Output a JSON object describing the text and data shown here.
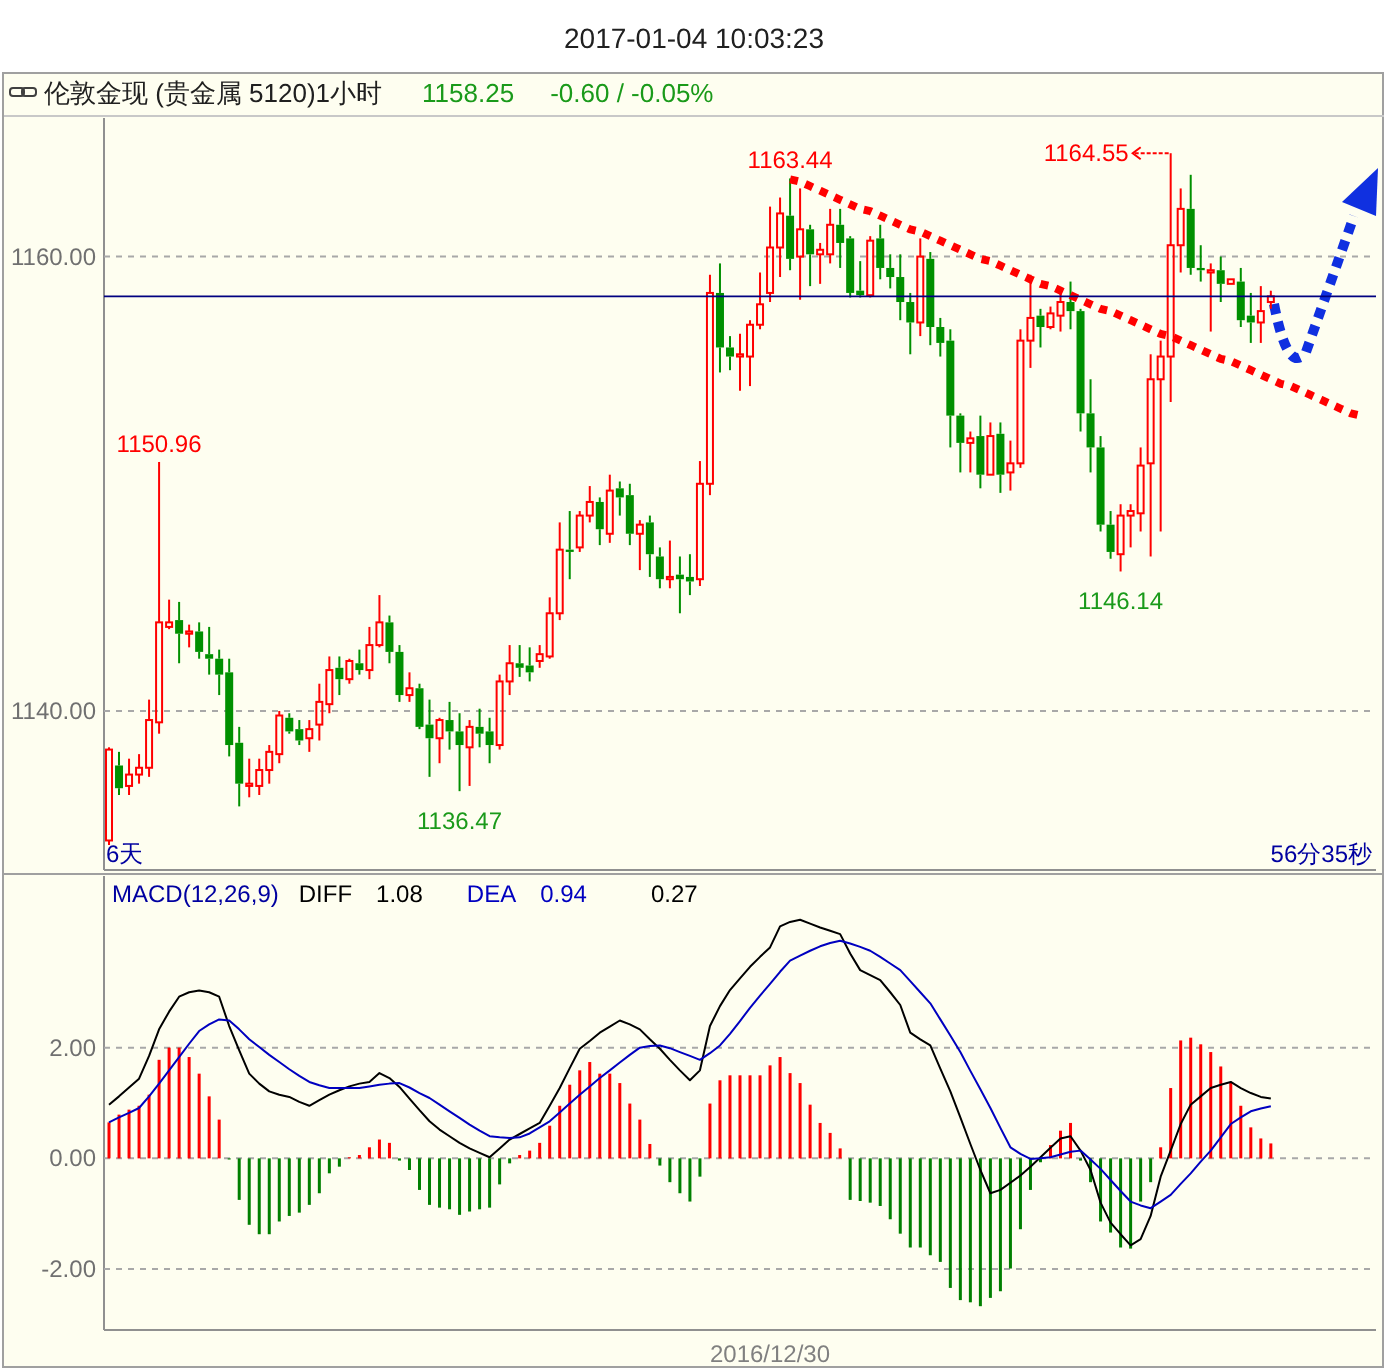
{
  "chart_data": [
    {
      "type": "candlestick",
      "title": "2017-01-04 10:03:23",
      "subtitle": "伦敦金现 (贵金属 5120)1小时",
      "categories": [
        null,
        null,
        null,
        null,
        null,
        null,
        null,
        null,
        null,
        null,
        null,
        null,
        null,
        null,
        null,
        null,
        null,
        null,
        null,
        null,
        null,
        null,
        null,
        null,
        null,
        null,
        null,
        null,
        null,
        null,
        null,
        null,
        null,
        null,
        null,
        null,
        null,
        null,
        null,
        null,
        null,
        null,
        null,
        null,
        null,
        null,
        null,
        null,
        null,
        null,
        null,
        null,
        null,
        null,
        null,
        null,
        null,
        null,
        null,
        null,
        null,
        null,
        null,
        null,
        null,
        null,
        null,
        null,
        null,
        null,
        null,
        null,
        null,
        null,
        null,
        null,
        null,
        null,
        null,
        null,
        null,
        null,
        null,
        null,
        null,
        null,
        null,
        null,
        null,
        null,
        null,
        null,
        null,
        null,
        null,
        null,
        null,
        null,
        null,
        null,
        null,
        null,
        null,
        null,
        null,
        null,
        null,
        null,
        null,
        null,
        null,
        null,
        null,
        null,
        null,
        null,
        null,
        null,
        null,
        null,
        null,
        null,
        null,
        null,
        null,
        null,
        null
      ],
      "ohlc": [
        [
          1134.3,
          1138.4,
          1134.1,
          1138.3
        ],
        [
          1137.6,
          1138.2,
          1136.3,
          1136.6
        ],
        [
          1136.7,
          1137.9,
          1136.3,
          1137.2
        ],
        [
          1137.2,
          1138.1,
          1136.8,
          1137.5
        ],
        [
          1137.5,
          1140.5,
          1137.1,
          1139.6
        ],
        [
          1139.5,
          1150.96,
          1139.0,
          1143.9
        ],
        [
          1143.7,
          1144.9,
          1143.6,
          1143.9
        ],
        [
          1144.0,
          1144.8,
          1142.1,
          1143.4
        ],
        [
          1143.4,
          1143.8,
          1142.8,
          1143.5
        ],
        [
          1143.5,
          1143.9,
          1142.3,
          1142.6
        ],
        [
          1142.5,
          1143.7,
          1141.6,
          1142.3
        ],
        [
          1142.3,
          1142.7,
          1140.7,
          1141.6
        ],
        [
          1141.7,
          1142.3,
          1138.0,
          1138.5
        ],
        [
          1138.6,
          1139.3,
          1135.8,
          1136.8
        ],
        [
          1136.7,
          1137.9,
          1136.2,
          1136.8
        ],
        [
          1136.7,
          1137.9,
          1136.3,
          1137.4
        ],
        [
          1137.4,
          1138.5,
          1136.8,
          1138.2
        ],
        [
          1138.1,
          1140.0,
          1137.7,
          1139.8
        ],
        [
          1139.7,
          1139.9,
          1139.0,
          1139.1
        ],
        [
          1139.2,
          1139.6,
          1138.5,
          1138.7
        ],
        [
          1138.8,
          1139.6,
          1138.2,
          1139.2
        ],
        [
          1139.4,
          1141.2,
          1138.7,
          1140.4
        ],
        [
          1140.3,
          1142.4,
          1139.9,
          1141.8
        ],
        [
          1141.9,
          1142.4,
          1140.7,
          1141.4
        ],
        [
          1141.4,
          1142.3,
          1141.2,
          1142.2
        ],
        [
          1142.1,
          1142.7,
          1141.6,
          1141.8
        ],
        [
          1141.8,
          1143.7,
          1141.4,
          1142.9
        ],
        [
          1142.9,
          1145.1,
          1142.8,
          1143.9
        ],
        [
          1143.9,
          1144.2,
          1142.1,
          1142.6
        ],
        [
          1142.6,
          1142.9,
          1140.4,
          1140.7
        ],
        [
          1140.7,
          1141.7,
          1140.4,
          1141.0
        ],
        [
          1141.0,
          1141.2,
          1139.2,
          1139.3
        ],
        [
          1139.4,
          1140.5,
          1137.1,
          1138.8
        ],
        [
          1138.8,
          1139.7,
          1137.7,
          1139.6
        ],
        [
          1139.6,
          1140.4,
          1138.3,
          1139.1
        ],
        [
          1139.1,
          1139.9,
          1136.47,
          1138.5
        ],
        [
          1138.4,
          1139.6,
          1136.7,
          1139.3
        ],
        [
          1139.3,
          1140.1,
          1138.4,
          1139.0
        ],
        [
          1139.1,
          1139.7,
          1137.7,
          1138.5
        ],
        [
          1138.5,
          1141.6,
          1138.3,
          1141.3
        ],
        [
          1141.3,
          1142.9,
          1140.7,
          1142.1
        ],
        [
          1142.1,
          1142.9,
          1141.5,
          1141.9
        ],
        [
          1142.0,
          1142.8,
          1141.3,
          1141.7
        ],
        [
          1142.2,
          1142.9,
          1141.9,
          1142.5
        ],
        [
          1142.4,
          1145.0,
          1142.3,
          1144.3
        ],
        [
          1144.3,
          1148.3,
          1144.0,
          1147.1
        ],
        [
          1147.1,
          1148.8,
          1145.8,
          1147.0
        ],
        [
          1147.2,
          1148.8,
          1147.0,
          1148.6
        ],
        [
          1148.6,
          1149.9,
          1148.3,
          1149.2
        ],
        [
          1149.2,
          1149.4,
          1147.3,
          1148.0
        ],
        [
          1147.8,
          1150.4,
          1147.4,
          1149.7
        ],
        [
          1149.8,
          1150.1,
          1148.6,
          1149.4
        ],
        [
          1149.5,
          1150.0,
          1147.3,
          1147.8
        ],
        [
          1147.8,
          1148.4,
          1146.2,
          1148.2
        ],
        [
          1148.3,
          1148.6,
          1145.9,
          1146.9
        ],
        [
          1146.8,
          1147.2,
          1145.4,
          1145.8
        ],
        [
          1145.8,
          1147.5,
          1145.4,
          1145.9
        ],
        [
          1146.0,
          1146.8,
          1144.3,
          1145.8
        ],
        [
          1145.9,
          1146.9,
          1145.1,
          1145.7
        ],
        [
          1145.8,
          1151.0,
          1145.5,
          1150.0
        ],
        [
          1150.0,
          1159.2,
          1149.5,
          1158.4
        ],
        [
          1158.4,
          1159.7,
          1154.9,
          1156.0
        ],
        [
          1156.0,
          1156.5,
          1155.0,
          1155.6
        ],
        [
          1155.6,
          1156.6,
          1154.1,
          1155.7
        ],
        [
          1155.6,
          1157.2,
          1154.3,
          1157.0
        ],
        [
          1157.0,
          1159.3,
          1156.8,
          1157.9
        ],
        [
          1158.4,
          1162.2,
          1158.0,
          1160.4
        ],
        [
          1160.4,
          1162.6,
          1159.1,
          1161.9
        ],
        [
          1161.8,
          1163.44,
          1159.4,
          1159.9
        ],
        [
          1160.0,
          1163.0,
          1158.1,
          1161.2
        ],
        [
          1161.2,
          1161.4,
          1158.7,
          1160.1
        ],
        [
          1160.1,
          1160.6,
          1158.8,
          1160.3
        ],
        [
          1160.1,
          1162.1,
          1159.7,
          1161.4
        ],
        [
          1161.4,
          1162.1,
          1159.5,
          1160.6
        ],
        [
          1160.8,
          1160.9,
          1158.2,
          1158.4
        ],
        [
          1158.5,
          1159.8,
          1158.2,
          1158.3
        ],
        [
          1158.3,
          1160.9,
          1158.2,
          1160.7
        ],
        [
          1160.8,
          1161.4,
          1159.0,
          1159.5
        ],
        [
          1159.5,
          1160.1,
          1158.6,
          1159.1
        ],
        [
          1159.1,
          1160.1,
          1157.2,
          1158.0
        ],
        [
          1158.0,
          1158.4,
          1155.7,
          1157.1
        ],
        [
          1157.1,
          1160.8,
          1156.5,
          1160.0
        ],
        [
          1159.9,
          1160.2,
          1156.1,
          1156.9
        ],
        [
          1156.9,
          1157.3,
          1155.6,
          1156.2
        ],
        [
          1156.3,
          1156.8,
          1151.6,
          1153.0
        ],
        [
          1153.0,
          1153.1,
          1150.5,
          1151.8
        ],
        [
          1151.8,
          1152.3,
          1150.5,
          1152.0
        ],
        [
          1152.1,
          1153.0,
          1149.8,
          1150.4
        ],
        [
          1150.4,
          1152.7,
          1150.4,
          1152.1
        ],
        [
          1152.2,
          1152.7,
          1149.6,
          1150.4
        ],
        [
          1150.5,
          1151.9,
          1149.7,
          1150.9
        ],
        [
          1150.9,
          1156.8,
          1150.7,
          1156.3
        ],
        [
          1156.3,
          1159.2,
          1155.1,
          1157.3
        ],
        [
          1157.4,
          1157.7,
          1156.0,
          1156.9
        ],
        [
          1156.9,
          1157.8,
          1156.8,
          1157.5
        ],
        [
          1157.4,
          1158.4,
          1156.7,
          1158.0
        ],
        [
          1158.0,
          1158.9,
          1156.8,
          1157.6
        ],
        [
          1157.6,
          1157.7,
          1152.3,
          1153.1
        ],
        [
          1153.1,
          1154.6,
          1150.5,
          1151.6
        ],
        [
          1151.6,
          1152.1,
          1147.9,
          1148.2
        ],
        [
          1148.2,
          1148.8,
          1146.7,
          1147.0
        ],
        [
          1146.9,
          1149.1,
          1146.14,
          1148.6
        ],
        [
          1148.6,
          1149.1,
          1147.2,
          1148.8
        ],
        [
          1148.7,
          1151.6,
          1147.9,
          1150.8
        ],
        [
          1150.9,
          1155.7,
          1146.8,
          1154.6
        ],
        [
          1154.6,
          1156.3,
          1147.9,
          1155.6
        ],
        [
          1155.6,
          1164.55,
          1153.6,
          1160.5
        ],
        [
          1160.5,
          1163.0,
          1159.3,
          1162.1
        ],
        [
          1162.1,
          1163.6,
          1159.2,
          1159.5
        ],
        [
          1159.5,
          1160.5,
          1158.9,
          1159.4
        ],
        [
          1159.3,
          1159.7,
          1156.7,
          1159.4
        ],
        [
          1159.4,
          1160.0,
          1158.0,
          1158.8
        ],
        [
          1158.8,
          1159.0,
          1158.8,
          1159.0
        ],
        [
          1158.9,
          1159.5,
          1156.9,
          1157.2
        ],
        [
          1157.4,
          1158.4,
          1156.2,
          1157.1
        ],
        [
          1157.1,
          1158.7,
          1156.2,
          1157.6
        ],
        [
          1158.0,
          1158.5,
          1157.7,
          1158.25
        ],
        null,
        null,
        null,
        null,
        null,
        null,
        null,
        null,
        null,
        null
      ],
      "series": [
        {
          "type": "line",
          "color": "#ff0000",
          "line_style": "dotted",
          "values": [
            null,
            null,
            null,
            null,
            null,
            null,
            null,
            null,
            null,
            null,
            null,
            null,
            null,
            null,
            null,
            null,
            null,
            null,
            null,
            null,
            null,
            null,
            null,
            null,
            null,
            null,
            null,
            null,
            null,
            null,
            null,
            null,
            null,
            null,
            null,
            null,
            null,
            null,
            null,
            null,
            null,
            null,
            null,
            null,
            null,
            null,
            null,
            null,
            null,
            null,
            null,
            null,
            null,
            null,
            null,
            null,
            null,
            null,
            null,
            null,
            null,
            null,
            null,
            null,
            null,
            null,
            null,
            null,
            1163.4,
            1163.3,
            1163.1,
            1162.9,
            1162.7,
            1162.5,
            1162.3,
            1162.1,
            1162.0,
            1161.8,
            1161.6,
            1161.4,
            1161.2,
            1161.1,
            1160.9,
            1160.7,
            1160.5,
            1160.3,
            1160.1,
            1159.9,
            1159.8,
            1159.6,
            1159.4,
            1159.2,
            1159.0,
            1158.8,
            1158.7,
            1158.5,
            1158.3,
            1158.1,
            1157.9,
            1157.7,
            1157.6,
            1157.4,
            1157.2,
            1157.0,
            1156.8,
            1156.6,
            1156.5,
            1156.3,
            1156.1,
            1155.9,
            1155.7,
            1155.5,
            1155.4,
            1155.2,
            1155.0,
            1154.8,
            1154.6,
            1154.4,
            1154.3,
            1154.1,
            1153.9,
            1153.7,
            1153.5,
            1153.3,
            1153.1,
            1153.0,
            null
          ]
        }
      ],
      "ylim": [
        1133.0,
        1166.1
      ],
      "yticks": [
        {
          "value": 1140,
          "label": "1140.00"
        },
        {
          "value": 1160,
          "label": "1160.00"
        }
      ],
      "grid": "y",
      "ref_lines": [
        {
          "axis": "y",
          "value": 1158.25,
          "color": "#000080"
        }
      ],
      "annotations": [
        "1158.25",
        "-0.60 / -0.05%",
        {
          "text": "1163.44",
          "y": 1163.44
        },
        "1164.55",
        {
          "text": "1150.96",
          "y": 1150.96
        },
        {
          "text": "1136.47",
          "y": 1136.47
        },
        {
          "text": "1146.14",
          "y": 1146.14
        },
        "6天",
        "56分35秒"
      ]
    },
    {
      "type": "line",
      "title": "MACD(12,26,9)",
      "categories": [
        null,
        null,
        null,
        null,
        null,
        null,
        null,
        null,
        null,
        null,
        null,
        null,
        null,
        null,
        null,
        null,
        null,
        null,
        null,
        null,
        null,
        null,
        null,
        null,
        null,
        null,
        null,
        null,
        null,
        null,
        null,
        null,
        null,
        null,
        null,
        null,
        null,
        null,
        null,
        null,
        null,
        null,
        null,
        null,
        null,
        null,
        null,
        null,
        null,
        null,
        null,
        null,
        null,
        null,
        null,
        null,
        null,
        null,
        null,
        null,
        null,
        null,
        null,
        null,
        null,
        null,
        null,
        null,
        null,
        null,
        null,
        null,
        null,
        null,
        null,
        null,
        null,
        null,
        null,
        null,
        null,
        null,
        null,
        null,
        null,
        null,
        null,
        null,
        null,
        null,
        null,
        null,
        null,
        null,
        null,
        null,
        null,
        null,
        null,
        null,
        null,
        null,
        null,
        null,
        null,
        null,
        null,
        null,
        null,
        null,
        null,
        null,
        null,
        null,
        null,
        null,
        null,
        null,
        null,
        null,
        null,
        null,
        null,
        null,
        null,
        null,
        null
      ],
      "series": [
        {
          "type": "bar",
          "values": [
            0.65,
            0.79,
            0.88,
            0.95,
            1.15,
            1.78,
            2.0,
            2.0,
            1.83,
            1.53,
            1.12,
            0.7,
            -0.02,
            -0.75,
            -1.2,
            -1.37,
            -1.37,
            -1.14,
            -1.04,
            -0.98,
            -0.84,
            -0.63,
            -0.27,
            -0.15,
            0.02,
            0.06,
            0.2,
            0.34,
            0.28,
            -0.04,
            -0.21,
            -0.57,
            -0.84,
            -0.89,
            -0.92,
            -1.02,
            -0.96,
            -0.92,
            -0.89,
            -0.47,
            -0.09,
            0.06,
            0.14,
            0.28,
            0.59,
            0.95,
            1.33,
            1.59,
            1.74,
            1.53,
            1.53,
            1.36,
            0.99,
            0.7,
            0.26,
            -0.13,
            -0.43,
            -0.63,
            -0.78,
            -0.33,
            0.99,
            1.41,
            1.5,
            1.5,
            1.5,
            1.5,
            1.68,
            1.83,
            1.54,
            1.36,
            0.97,
            0.64,
            0.46,
            0.18,
            -0.75,
            -0.77,
            -0.8,
            -0.86,
            -1.1,
            -1.36,
            -1.61,
            -1.61,
            -1.75,
            -1.87,
            -2.34,
            -2.56,
            -2.6,
            -2.67,
            -2.52,
            -2.4,
            -1.99,
            -1.28,
            -0.57,
            -0.07,
            0.24,
            0.5,
            0.64,
            -0.04,
            -0.43,
            -1.14,
            -1.34,
            -1.61,
            -1.63,
            -0.78,
            -0.43,
            0.2,
            1.27,
            2.13,
            2.18,
            2.06,
            1.92,
            1.66,
            1.38,
            0.95,
            0.56,
            0.36,
            0.27,
            null,
            null,
            null,
            null,
            null,
            null,
            null,
            null,
            null,
            null
          ],
          "colors": [
            "#ff0000",
            "#ff0000",
            "#ff0000",
            "#ff0000",
            "#ff0000",
            "#ff0000",
            "#ff0000",
            "#ff0000",
            "#ff0000",
            "#ff0000",
            "#ff0000",
            "#ff0000",
            "#008000",
            "#008000",
            "#008000",
            "#008000",
            "#008000",
            "#008000",
            "#008000",
            "#008000",
            "#008000",
            "#008000",
            "#008000",
            "#008000",
            "#ff0000",
            "#ff0000",
            "#ff0000",
            "#ff0000",
            "#ff0000",
            "#008000",
            "#008000",
            "#008000",
            "#008000",
            "#008000",
            "#008000",
            "#008000",
            "#008000",
            "#008000",
            "#008000",
            "#008000",
            "#008000",
            "#ff0000",
            "#ff0000",
            "#ff0000",
            "#ff0000",
            "#ff0000",
            "#ff0000",
            "#ff0000",
            "#ff0000",
            "#ff0000",
            "#ff0000",
            "#ff0000",
            "#ff0000",
            "#ff0000",
            "#ff0000",
            "#008000",
            "#008000",
            "#008000",
            "#008000",
            "#008000",
            "#ff0000",
            "#ff0000",
            "#ff0000",
            "#ff0000",
            "#ff0000",
            "#ff0000",
            "#ff0000",
            "#ff0000",
            "#ff0000",
            "#ff0000",
            "#ff0000",
            "#ff0000",
            "#ff0000",
            "#ff0000",
            "#008000",
            "#008000",
            "#008000",
            "#008000",
            "#008000",
            "#008000",
            "#008000",
            "#008000",
            "#008000",
            "#008000",
            "#008000",
            "#008000",
            "#008000",
            "#008000",
            "#008000",
            "#008000",
            "#008000",
            "#008000",
            "#008000",
            "#008000",
            "#ff0000",
            "#ff0000",
            "#ff0000",
            "#008000",
            "#008000",
            "#008000",
            "#008000",
            "#008000",
            "#008000",
            "#008000",
            "#008000",
            "#ff0000",
            "#ff0000",
            "#ff0000",
            "#ff0000",
            "#ff0000",
            "#ff0000",
            "#ff0000",
            "#ff0000",
            "#ff0000",
            "#ff0000",
            "#ff0000",
            "#ff0000",
            null,
            null,
            null,
            null,
            null,
            null,
            null,
            null,
            null,
            null
          ]
        },
        {
          "name": "DIFF",
          "color": "#000000",
          "values": [
            0.97,
            1.12,
            1.28,
            1.44,
            1.85,
            2.33,
            2.65,
            2.92,
            3.0,
            3.03,
            3.0,
            2.92,
            2.39,
            1.95,
            1.53,
            1.35,
            1.21,
            1.15,
            1.11,
            1.02,
            0.95,
            1.05,
            1.15,
            1.23,
            1.3,
            1.35,
            1.38,
            1.54,
            1.45,
            1.29,
            1.08,
            0.87,
            0.67,
            0.52,
            0.4,
            0.28,
            0.18,
            0.1,
            0.02,
            0.18,
            0.34,
            0.44,
            0.54,
            0.64,
            0.95,
            1.27,
            1.63,
            1.98,
            2.12,
            2.27,
            2.38,
            2.49,
            2.42,
            2.33,
            2.15,
            1.98,
            1.78,
            1.59,
            1.41,
            1.59,
            2.39,
            2.75,
            3.04,
            3.25,
            3.46,
            3.64,
            3.81,
            4.19,
            4.27,
            4.31,
            4.24,
            4.17,
            4.11,
            4.05,
            3.7,
            3.4,
            3.31,
            3.22,
            3.0,
            2.77,
            2.27,
            2.15,
            2.04,
            1.62,
            1.21,
            0.74,
            0.26,
            -0.21,
            -0.63,
            -0.57,
            -0.44,
            -0.31,
            -0.15,
            0.02,
            0.19,
            0.36,
            0.4,
            0.14,
            -0.21,
            -0.8,
            -1.16,
            -1.37,
            -1.57,
            -1.46,
            -1.04,
            -0.33,
            0.14,
            0.62,
            0.97,
            1.12,
            1.27,
            1.33,
            1.38,
            1.27,
            1.18,
            1.11,
            1.08,
            null,
            null,
            null,
            null,
            null,
            null,
            null,
            null,
            null,
            null
          ]
        },
        {
          "name": "DEA",
          "color": "#0000c0",
          "values": [
            0.65,
            0.74,
            0.82,
            0.91,
            1.12,
            1.35,
            1.59,
            1.83,
            2.07,
            2.3,
            2.42,
            2.51,
            2.49,
            2.33,
            2.15,
            2.01,
            1.87,
            1.74,
            1.61,
            1.49,
            1.38,
            1.32,
            1.27,
            1.27,
            1.27,
            1.27,
            1.3,
            1.33,
            1.35,
            1.36,
            1.28,
            1.18,
            1.09,
            0.97,
            0.85,
            0.73,
            0.61,
            0.5,
            0.4,
            0.38,
            0.37,
            0.38,
            0.45,
            0.56,
            0.67,
            0.83,
            0.99,
            1.15,
            1.3,
            1.45,
            1.59,
            1.73,
            1.87,
            2.0,
            2.03,
            2.04,
            1.99,
            1.92,
            1.85,
            1.78,
            1.9,
            2.04,
            2.25,
            2.48,
            2.72,
            2.94,
            3.15,
            3.37,
            3.57,
            3.66,
            3.75,
            3.83,
            3.89,
            3.93,
            3.88,
            3.82,
            3.75,
            3.64,
            3.52,
            3.4,
            3.2,
            3.0,
            2.8,
            2.51,
            2.22,
            1.92,
            1.58,
            1.25,
            0.91,
            0.55,
            0.2,
            0.08,
            -0.01,
            0.0,
            0.02,
            0.07,
            0.12,
            0.14,
            -0.02,
            -0.19,
            -0.39,
            -0.59,
            -0.78,
            -0.85,
            -0.9,
            -0.78,
            -0.66,
            -0.46,
            -0.27,
            -0.06,
            0.14,
            0.38,
            0.62,
            0.74,
            0.85,
            0.9,
            0.94,
            null,
            null,
            null,
            null,
            null,
            null,
            null,
            null,
            null,
            null
          ]
        }
      ],
      "ylim": [
        -3.1,
        5.1
      ],
      "yticks": [
        {
          "value": -2,
          "label": "-2.00"
        },
        {
          "value": 0,
          "label": "0.00"
        },
        {
          "value": 2,
          "label": "2.00"
        }
      ],
      "grid": "y",
      "legend": "top left",
      "annotations": [
        "1.08",
        "0.94",
        "0.27",
        "2016/12/30"
      ]
    }
  ]
}
